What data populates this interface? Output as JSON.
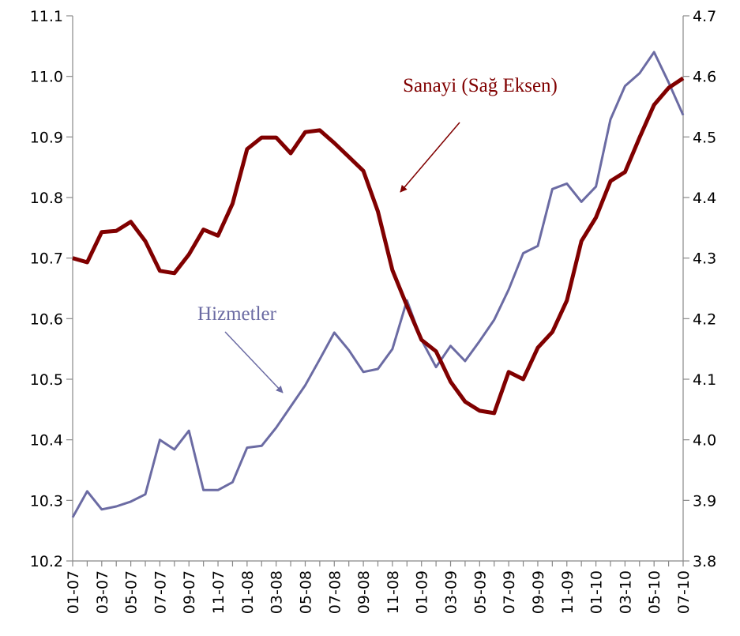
{
  "chart_data": {
    "type": "line",
    "categories": [
      "01-07",
      null,
      "03-07",
      null,
      "05-07",
      null,
      "07-07",
      null,
      "09-07",
      null,
      "11-07",
      null,
      "01-08",
      null,
      "03-08",
      null,
      "05-08",
      null,
      "07-08",
      null,
      "09-08",
      null,
      "11-08",
      null,
      "01-09",
      null,
      "03-09",
      null,
      "05-09",
      null,
      "07-09",
      null,
      "09-09",
      null,
      "11-09",
      null,
      "01-10",
      null,
      "03-10",
      null,
      "05-10",
      null,
      "07-10"
    ],
    "series": [
      {
        "name": "Hizmetler",
        "color": "#6b6ba3",
        "values": [
          10.272,
          10.315,
          10.285,
          10.29,
          10.298,
          10.31,
          10.4,
          10.384,
          10.415,
          10.317,
          10.317,
          10.33,
          10.387,
          10.39,
          10.42,
          10.455,
          10.49,
          10.533,
          10.577,
          10.548,
          10.512,
          10.517,
          10.55,
          10.63,
          10.565,
          10.52,
          10.555,
          10.53,
          10.563,
          10.598,
          10.648,
          10.708,
          10.72,
          10.814,
          10.823,
          10.793,
          10.818,
          10.929,
          10.984,
          11.005,
          11.04,
          10.99,
          10.936
        ]
      },
      {
        "name": "Sanayi (Sağ Eksen)",
        "color": "#800000",
        "axis": "y2",
        "values": [
          4.3,
          4.293,
          4.343,
          4.345,
          4.36,
          4.328,
          4.279,
          4.275,
          4.306,
          4.347,
          4.337,
          4.39,
          4.48,
          4.499,
          4.499,
          4.473,
          4.508,
          4.511,
          4.49,
          4.467,
          4.444,
          4.377,
          4.28,
          4.221,
          4.165,
          4.146,
          4.096,
          4.063,
          4.048,
          4.044,
          4.112,
          4.1,
          4.152,
          4.178,
          4.23,
          4.328,
          4.367,
          4.427,
          4.442,
          4.499,
          4.553,
          4.581,
          4.597
        ]
      }
    ],
    "ylim": [
      10.2,
      11.1
    ],
    "yticks": [
      10.2,
      10.3,
      10.4,
      10.5,
      10.6,
      10.7,
      10.8,
      10.9,
      {
        "value": 11,
        "label": "11.0"
      },
      11.1
    ],
    "y2lim": [
      3.8,
      4.7
    ],
    "y2ticks": [
      3.8,
      3.9,
      {
        "value": 4,
        "label": "4.0"
      },
      4.1,
      4.2,
      4.3,
      4.4,
      4.5,
      4.6,
      4.7
    ],
    "grid": false
  }
}
